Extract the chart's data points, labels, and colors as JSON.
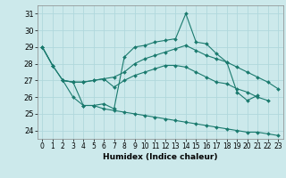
{
  "xlabel": "Humidex (Indice chaleur)",
  "background_color": "#cce9eb",
  "grid_color": "#b0d8dc",
  "line_color": "#1a7a6e",
  "xlim": [
    -0.5,
    23.5
  ],
  "ylim": [
    23.5,
    31.5
  ],
  "yticks": [
    24,
    25,
    26,
    27,
    28,
    29,
    30,
    31
  ],
  "xticks": [
    0,
    1,
    2,
    3,
    4,
    5,
    6,
    7,
    8,
    9,
    10,
    11,
    12,
    13,
    14,
    15,
    16,
    17,
    18,
    19,
    20,
    21,
    22,
    23
  ],
  "lines": [
    [
      29.0,
      27.9,
      null,
      null,
      null,
      null,
      null,
      null,
      null,
      null,
      null,
      null,
      null,
      null,
      null,
      null,
      null,
      null,
      null,
      null,
      null,
      null,
      null,
      null
    ],
    [
      null,
      null,
      27.0,
      26.9,
      26.9,
      27.0,
      27.1,
      27.2,
      27.5,
      28.0,
      28.3,
      28.5,
      28.7,
      28.9,
      29.1,
      28.8,
      28.5,
      28.3,
      28.1,
      27.8,
      27.5,
      27.2,
      26.9,
      26.5
    ],
    [
      null,
      null,
      27.0,
      26.9,
      26.9,
      27.0,
      27.1,
      26.6,
      27.0,
      27.3,
      27.5,
      27.7,
      27.9,
      27.9,
      27.8,
      27.5,
      27.2,
      26.9,
      26.8,
      26.5,
      26.3,
      26.0,
      25.8,
      null
    ],
    [
      29.0,
      27.9,
      27.0,
      26.0,
      25.5,
      25.5,
      25.6,
      25.3,
      28.4,
      29.0,
      29.1,
      29.3,
      29.4,
      29.5,
      31.0,
      29.3,
      29.2,
      28.6,
      28.1,
      26.3,
      25.8,
      26.1,
      null,
      null
    ],
    [
      29.0,
      27.9,
      27.0,
      26.9,
      25.5,
      25.5,
      25.3,
      25.2,
      25.1,
      25.0,
      24.9,
      24.8,
      24.7,
      24.6,
      24.5,
      24.4,
      24.3,
      24.2,
      24.1,
      24.0,
      23.9,
      23.9,
      23.8,
      23.7
    ]
  ]
}
